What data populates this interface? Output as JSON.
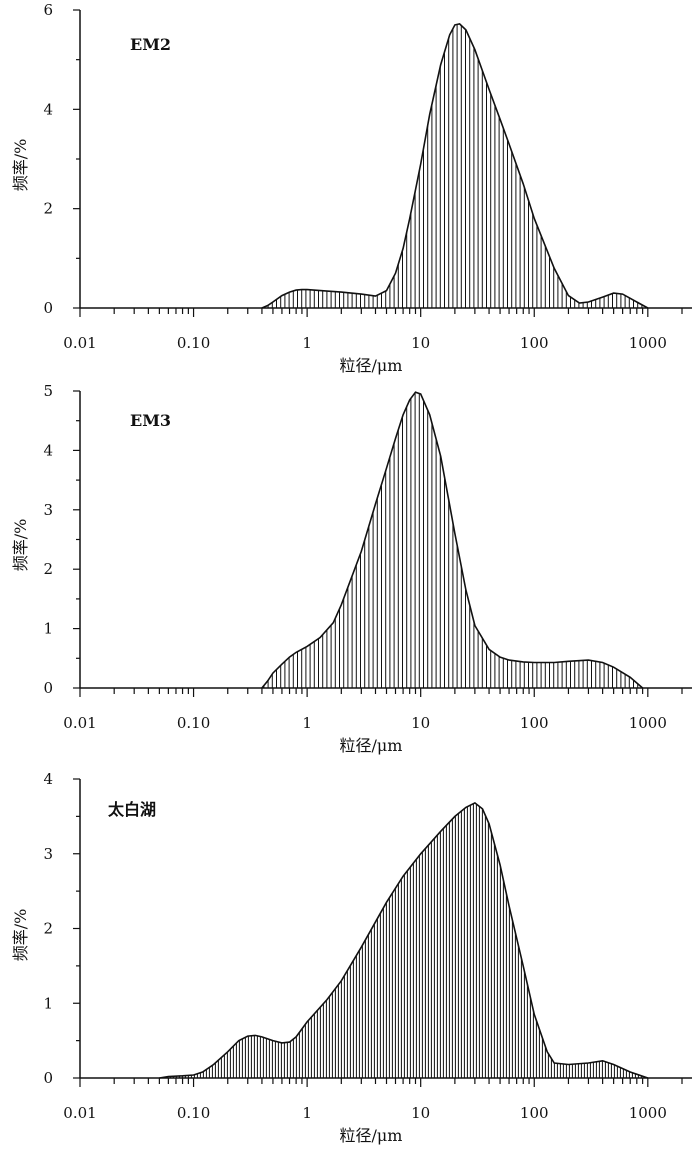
{
  "chart_data": [
    {
      "type": "area",
      "label": "EM2",
      "xlabel": "粒径/μm",
      "ylabel": "频率/%",
      "xscale": "log",
      "xlim": [
        0.01,
        2000
      ],
      "ylim": [
        0,
        6
      ],
      "yticks": [
        0,
        2,
        4,
        6
      ],
      "xtick_labels": [
        "0.01",
        "0.10",
        "1",
        "10",
        "100",
        "1000"
      ],
      "fill": "vertical-hatch",
      "x": [
        0.4,
        0.45,
        0.5,
        0.6,
        0.7,
        0.8,
        0.9,
        1,
        1.5,
        2,
        3,
        4,
        5,
        6,
        7,
        8,
        10,
        12,
        15,
        18,
        20,
        22,
        25,
        30,
        40,
        50,
        60,
        80,
        100,
        150,
        200,
        250,
        300,
        400,
        500,
        600,
        800,
        1000
      ],
      "y": [
        0,
        0.05,
        0.12,
        0.25,
        0.32,
        0.36,
        0.37,
        0.37,
        0.34,
        0.32,
        0.28,
        0.24,
        0.35,
        0.7,
        1.2,
        1.8,
        2.9,
        3.9,
        4.9,
        5.5,
        5.7,
        5.72,
        5.6,
        5.2,
        4.4,
        3.8,
        3.3,
        2.5,
        1.8,
        0.8,
        0.25,
        0.1,
        0.12,
        0.22,
        0.3,
        0.28,
        0.12,
        0
      ]
    },
    {
      "type": "area",
      "label": "EM3",
      "xlabel": "粒径/μm",
      "ylabel": "频率/%",
      "xscale": "log",
      "xlim": [
        0.01,
        2000
      ],
      "ylim": [
        0,
        5
      ],
      "yticks": [
        0,
        1,
        2,
        3,
        4,
        5
      ],
      "xtick_labels": [
        "0.01",
        "0.10",
        "1",
        "10",
        "100",
        "1000"
      ],
      "fill": "vertical-hatch",
      "x": [
        0.4,
        0.45,
        0.5,
        0.6,
        0.7,
        0.8,
        1,
        1.3,
        1.7,
        2,
        3,
        4,
        5,
        6,
        7,
        8,
        9,
        10,
        12,
        15,
        20,
        25,
        30,
        40,
        50,
        60,
        80,
        100,
        150,
        200,
        300,
        400,
        500,
        700,
        900
      ],
      "y": [
        0,
        0.12,
        0.25,
        0.4,
        0.52,
        0.6,
        0.7,
        0.85,
        1.1,
        1.4,
        2.3,
        3.1,
        3.7,
        4.2,
        4.6,
        4.85,
        4.98,
        4.95,
        4.6,
        3.9,
        2.6,
        1.65,
        1.05,
        0.65,
        0.52,
        0.47,
        0.44,
        0.43,
        0.43,
        0.45,
        0.47,
        0.43,
        0.35,
        0.18,
        0
      ]
    },
    {
      "type": "area",
      "label": "太白湖",
      "xlabel": "粒径/μm",
      "ylabel": "频率/%",
      "xscale": "log",
      "xlim": [
        0.01,
        2000
      ],
      "ylim": [
        0,
        4
      ],
      "yticks": [
        0,
        1,
        2,
        3,
        4
      ],
      "xtick_labels": [
        "0.01",
        "0.10",
        "1",
        "10",
        "100",
        "1000"
      ],
      "fill": "vertical-hatch",
      "x": [
        0.05,
        0.06,
        0.08,
        0.1,
        0.12,
        0.15,
        0.2,
        0.25,
        0.3,
        0.35,
        0.4,
        0.5,
        0.6,
        0.7,
        0.8,
        1,
        1.5,
        2,
        3,
        5,
        7,
        10,
        15,
        20,
        25,
        30,
        35,
        40,
        50,
        60,
        80,
        100,
        130,
        150,
        200,
        300,
        400,
        500,
        700,
        1000
      ],
      "y": [
        0,
        0.02,
        0.03,
        0.04,
        0.08,
        0.18,
        0.35,
        0.5,
        0.56,
        0.57,
        0.55,
        0.5,
        0.47,
        0.48,
        0.55,
        0.75,
        1.05,
        1.3,
        1.75,
        2.35,
        2.7,
        3.0,
        3.3,
        3.5,
        3.62,
        3.68,
        3.6,
        3.4,
        2.85,
        2.3,
        1.5,
        0.85,
        0.35,
        0.2,
        0.18,
        0.2,
        0.23,
        0.18,
        0.08,
        0
      ]
    }
  ]
}
